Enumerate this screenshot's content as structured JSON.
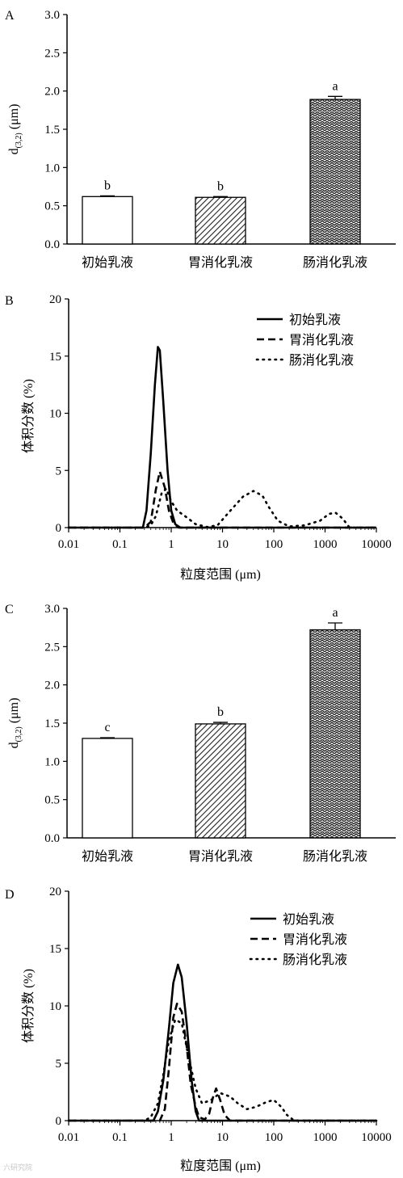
{
  "chart_data": [
    {
      "panel": "A",
      "type": "bar",
      "categories": [
        "初始乳液",
        "胃消化乳液",
        "肠消化乳液"
      ],
      "values": [
        0.62,
        0.61,
        1.89
      ],
      "errors": [
        0.01,
        0.01,
        0.04
      ],
      "significance": [
        "b",
        "b",
        "a"
      ],
      "patterns": [
        "none",
        "diag",
        "cross"
      ],
      "ylabel_main": "d",
      "ylabel_sub": "(3,2)",
      "ylabel_unit": " (μm)",
      "ylim": [
        0,
        3.0
      ],
      "yticks": [
        "0.0",
        "0.5",
        "1.0",
        "1.5",
        "2.0",
        "2.5",
        "3.0"
      ]
    },
    {
      "panel": "B",
      "type": "line",
      "xscale": "log",
      "xlabel": "粒度范围 (μm)",
      "ylabel": "体积分数 (%)",
      "xlim": [
        0.01,
        10000
      ],
      "ylim": [
        0,
        20
      ],
      "xticks": [
        "0.01",
        "0.1",
        "1",
        "10",
        "100",
        "1000",
        "10000"
      ],
      "yticks": [
        "0",
        "5",
        "10",
        "15",
        "20"
      ],
      "legend_position": "top-right",
      "series": [
        {
          "name": "初始乳液",
          "style": "solid",
          "x": [
            0.01,
            0.28,
            0.33,
            0.4,
            0.48,
            0.55,
            0.6,
            0.7,
            0.85,
            1.0,
            1.2,
            1.5,
            10000
          ],
          "y": [
            0,
            0,
            1.5,
            6.5,
            12.5,
            15.8,
            15.5,
            11,
            5,
            1.5,
            0.3,
            0,
            0
          ]
        },
        {
          "name": "胃消化乳液",
          "style": "dash",
          "x": [
            0.01,
            0.3,
            0.4,
            0.5,
            0.6,
            0.75,
            0.9,
            1.1,
            1.4,
            10000
          ],
          "y": [
            0,
            0,
            0.5,
            3.3,
            4.9,
            3.5,
            1.5,
            0.4,
            0,
            0
          ]
        },
        {
          "name": "肠消化乳液",
          "style": "dot",
          "x": [
            0.01,
            0.3,
            0.4,
            0.5,
            0.65,
            0.8,
            1.0,
            1.3,
            2.0,
            3.0,
            5.0,
            8.0,
            15,
            25,
            40,
            60,
            80,
            120,
            200,
            400,
            800,
            1200,
            1600,
            2200,
            3000,
            10000
          ],
          "y": [
            0,
            0,
            0.2,
            1.0,
            3.0,
            3.4,
            2.3,
            1.5,
            0.9,
            0.3,
            0.05,
            0.2,
            1.6,
            2.7,
            3.2,
            2.8,
            1.8,
            0.6,
            0.1,
            0.2,
            0.6,
            1.2,
            1.3,
            0.8,
            0,
            0
          ]
        }
      ]
    },
    {
      "panel": "C",
      "type": "bar",
      "categories": [
        "初始乳液",
        "胃消化乳液",
        "肠消化乳液"
      ],
      "values": [
        1.3,
        1.49,
        2.72
      ],
      "errors": [
        0.01,
        0.02,
        0.09
      ],
      "significance": [
        "c",
        "b",
        "a"
      ],
      "patterns": [
        "none",
        "diag",
        "cross"
      ],
      "ylabel_main": "d",
      "ylabel_sub": "(3,2)",
      "ylabel_unit": " (μm)",
      "ylim": [
        0,
        3.0
      ],
      "yticks": [
        "0.0",
        "0.5",
        "1.0",
        "1.5",
        "2.0",
        "2.5",
        "3.0"
      ]
    },
    {
      "panel": "D",
      "type": "line",
      "xscale": "log",
      "xlabel": "粒度范围 (μm)",
      "ylabel": "体积分数 (%)",
      "xlim": [
        0.01,
        10000
      ],
      "ylim": [
        0,
        20
      ],
      "xticks": [
        "0.01",
        "0.1",
        "1",
        "10",
        "100",
        "1000",
        "10000"
      ],
      "yticks": [
        "0",
        "5",
        "10",
        "15",
        "20"
      ],
      "legend_position": "top-right",
      "series": [
        {
          "name": "初始乳液",
          "style": "solid",
          "x": [
            0.01,
            0.45,
            0.55,
            0.7,
            0.9,
            1.1,
            1.35,
            1.6,
            2.0,
            2.5,
            3.0,
            3.5,
            10000
          ],
          "y": [
            0,
            0,
            0.8,
            3.5,
            8,
            12,
            13.6,
            12.5,
            8.5,
            3.5,
            0.8,
            0,
            0
          ]
        },
        {
          "name": "胃消化乳液",
          "style": "dash",
          "x": [
            0.01,
            0.6,
            0.75,
            0.9,
            1.1,
            1.3,
            1.6,
            2.0,
            2.4,
            3.0,
            3.5,
            4.5,
            5.5,
            6.5,
            7.5,
            9.0,
            11,
            14,
            10000
          ],
          "y": [
            0,
            0,
            1.0,
            4.5,
            9,
            10.2,
            9.5,
            6.5,
            3.2,
            1.2,
            0.3,
            0.1,
            0.6,
            2.0,
            2.8,
            1.8,
            0.5,
            0,
            0
          ]
        },
        {
          "name": "肠消化乳液",
          "style": "dot",
          "x": [
            0.01,
            0.3,
            0.4,
            0.55,
            0.7,
            0.9,
            1.2,
            1.6,
            2.2,
            3.0,
            4.0,
            6.0,
            9.0,
            14,
            20,
            30,
            45,
            70,
            100,
            140,
            180,
            250,
            10000
          ],
          "y": [
            0,
            0,
            0.3,
            1.5,
            4,
            7,
            8.8,
            8.5,
            5.5,
            2.8,
            1.5,
            1.8,
            2.4,
            2.1,
            1.5,
            1.0,
            1.2,
            1.6,
            1.8,
            1.2,
            0.5,
            0,
            0
          ]
        }
      ]
    }
  ],
  "panels": {
    "a": {
      "letter": "A",
      "cats": [
        "初始乳液",
        "胃消化乳液",
        "肠消化乳液"
      ]
    },
    "b": {
      "letter": "B",
      "ylabel": "体积分数 (%)",
      "xlabel": "粒度范围 (μm)",
      "legend": [
        "初始乳液",
        "胃消化乳液",
        "肠消化乳液"
      ]
    },
    "c": {
      "letter": "C",
      "cats": [
        "初始乳液",
        "胃消化乳液",
        "肠消化乳液"
      ]
    },
    "d": {
      "letter": "D",
      "ylabel": "体积分数 (%)",
      "xlabel": "粒度范围 (μm)",
      "legend": [
        "初始乳液",
        "胃消化乳液",
        "肠消化乳液"
      ]
    }
  },
  "watermark": "六研究院"
}
